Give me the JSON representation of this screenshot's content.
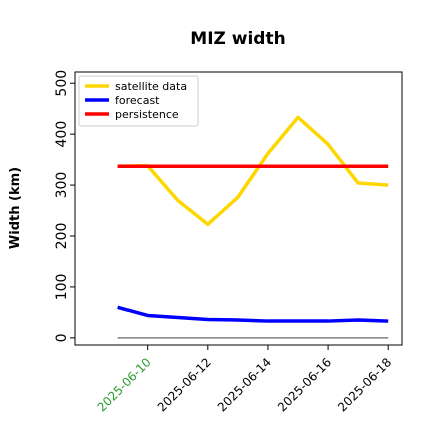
{
  "chart_data": {
    "type": "line",
    "title": "MIZ width",
    "ylabel": "Width (km)",
    "x": [
      "2025-06-09",
      "2025-06-10",
      "2025-06-11",
      "2025-06-12",
      "2025-06-13",
      "2025-06-14",
      "2025-06-15",
      "2025-06-16",
      "2025-06-17",
      "2025-06-18"
    ],
    "series": [
      {
        "name": "satellite data",
        "color": "#ffd700",
        "values": [
          337,
          338,
          270,
          223,
          276,
          362,
          433,
          380,
          304,
          300
        ]
      },
      {
        "name": "forecast",
        "color": "#0000ff",
        "values": [
          60,
          44,
          40,
          36,
          35,
          33,
          33,
          33,
          35,
          33
        ]
      },
      {
        "name": "persistence",
        "color": "#ff0000",
        "values": [
          337,
          337,
          337,
          337,
          337,
          337,
          337,
          337,
          337,
          337
        ]
      }
    ],
    "xlim": [
      "2025-06-07T14:00",
      "2025-06-18T11:00"
    ],
    "xticks": [
      "2025-06-10",
      "2025-06-12",
      "2025-06-14",
      "2025-06-16",
      "2025-06-18"
    ],
    "xtick_label_colors": [
      "#2a9d2a",
      "#000000",
      "#000000",
      "#000000",
      "#000000"
    ],
    "ylim": [
      -14,
      522
    ],
    "yticks": [
      0,
      100,
      200,
      300,
      400,
      500
    ],
    "legend": "upper left",
    "grid": false
  }
}
